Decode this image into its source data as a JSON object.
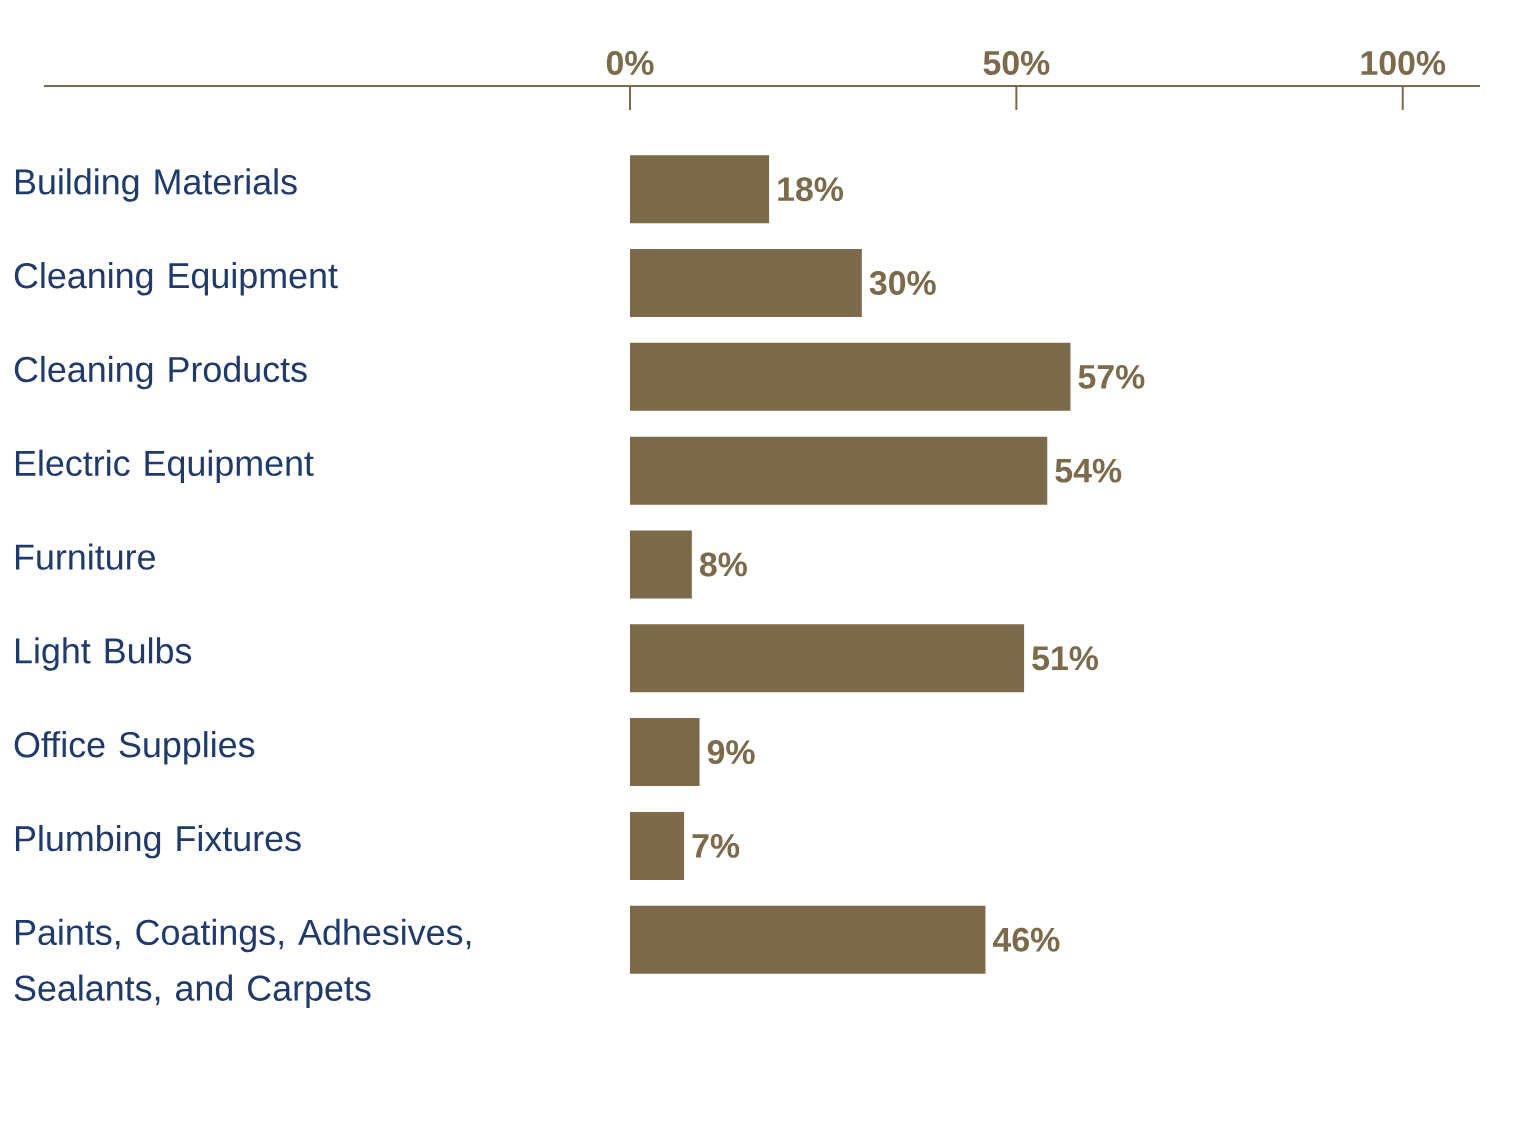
{
  "chart_data": {
    "type": "bar",
    "orientation": "horizontal",
    "categories": [
      "Building Materials",
      "Cleaning Equipment",
      "Cleaning Products",
      "Electric Equipment",
      "Furniture",
      "Light Bulbs",
      "Office Supplies",
      "Plumbing Fixtures",
      "Paints, Coatings, Adhesives, Sealants, and Carpets"
    ],
    "values": [
      18,
      30,
      57,
      54,
      8,
      51,
      9,
      7,
      46
    ],
    "value_labels": [
      "18%",
      "30%",
      "57%",
      "54%",
      "8%",
      "51%",
      "9%",
      "7%",
      "46%"
    ],
    "color": "#7d6a4a",
    "xlim": [
      0,
      110
    ],
    "xticks": [
      {
        "value": 0,
        "label": "0%"
      },
      {
        "value": 50,
        "label": "50%"
      },
      {
        "value": 100,
        "label": "100%"
      }
    ]
  }
}
